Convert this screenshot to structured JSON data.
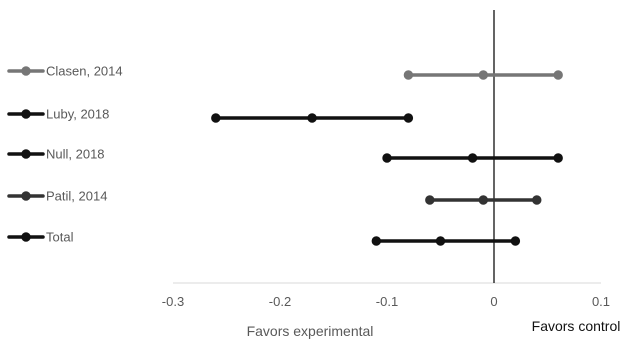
{
  "chart_data": {
    "type": "scatter",
    "title": "",
    "xlabel": "",
    "ylabel": "",
    "xlim": [
      -0.3,
      0.1
    ],
    "x_ticks": [
      "-0.3",
      "-0.2",
      "-0.1",
      "0",
      "0.1"
    ],
    "x_tick_values": [
      -0.3,
      -0.2,
      -0.1,
      0,
      0.1
    ],
    "reference_line_x": 0,
    "grid": false,
    "legend_position": "left",
    "annotations": {
      "left": "Favors experimental",
      "right": "Favors control"
    },
    "series": [
      {
        "name": "Clasen, 2014",
        "color": "#767676",
        "lower": -0.08,
        "estimate": -0.01,
        "upper": 0.06
      },
      {
        "name": "Luby, 2018",
        "color": "#111111",
        "lower": -0.26,
        "estimate": -0.17,
        "upper": -0.08
      },
      {
        "name": "Null, 2018",
        "color": "#111111",
        "lower": -0.1,
        "estimate": -0.02,
        "upper": 0.06
      },
      {
        "name": "Patil, 2014",
        "color": "#333333",
        "lower": -0.06,
        "estimate": -0.01,
        "upper": 0.04
      },
      {
        "name": "Total",
        "color": "#111111",
        "lower": -0.11,
        "estimate": -0.05,
        "upper": 0.02
      }
    ]
  }
}
